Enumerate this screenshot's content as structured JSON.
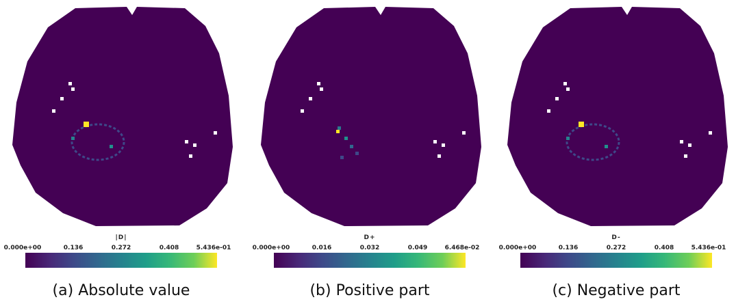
{
  "panels": [
    {
      "colorbar": {
        "title": "|D|",
        "ticks": [
          "0.000e+00",
          "0.136",
          "0.272",
          "0.408",
          "5.436e-01"
        ]
      },
      "caption": "(a) Absolute value"
    },
    {
      "colorbar": {
        "title": "D+",
        "ticks": [
          "0.000e+00",
          "0.016",
          "0.032",
          "0.049",
          "6.468e-02"
        ]
      },
      "caption": "(b) Positive part"
    },
    {
      "colorbar": {
        "title": "D-",
        "ticks": [
          "0.000e+00",
          "0.136",
          "0.272",
          "0.408",
          "5.436e-01"
        ]
      },
      "caption": "(c) Negative part"
    }
  ]
}
